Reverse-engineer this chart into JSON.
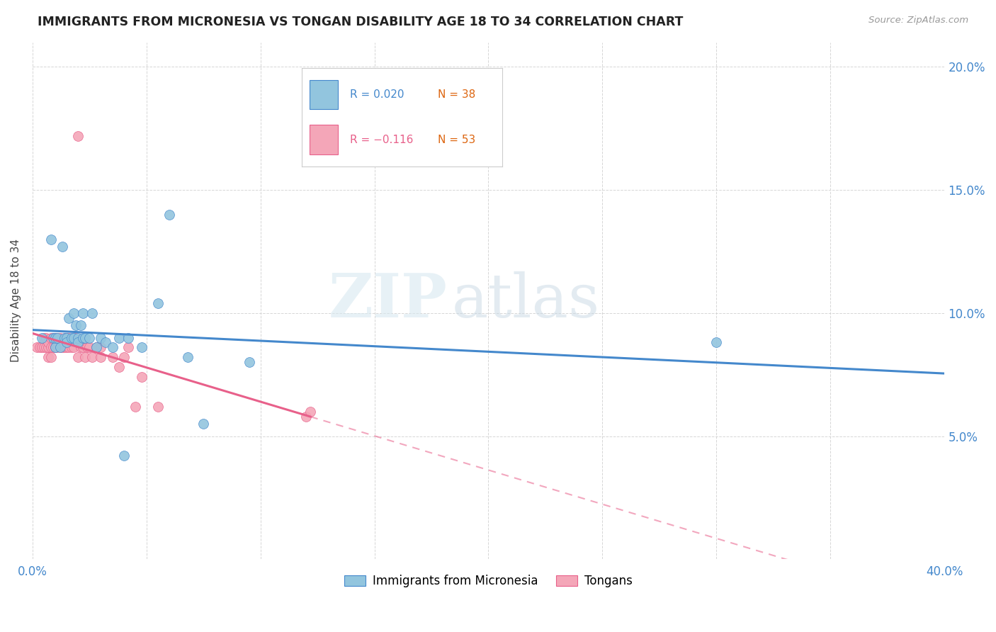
{
  "title": "IMMIGRANTS FROM MICRONESIA VS TONGAN DISABILITY AGE 18 TO 34 CORRELATION CHART",
  "source": "Source: ZipAtlas.com",
  "ylabel": "Disability Age 18 to 34",
  "xlim": [
    0.0,
    0.4
  ],
  "ylim": [
    0.0,
    0.21
  ],
  "x_ticks": [
    0.0,
    0.05,
    0.1,
    0.15,
    0.2,
    0.25,
    0.3,
    0.35,
    0.4
  ],
  "y_ticks": [
    0.0,
    0.05,
    0.1,
    0.15,
    0.2
  ],
  "blue_color": "#92c5de",
  "pink_color": "#f4a6b8",
  "blue_line_color": "#4488cc",
  "pink_line_color": "#e8608a",
  "legend_blue_r": "R = 0.020",
  "legend_blue_n": "N = 38",
  "legend_pink_r": "R = −0.116",
  "legend_pink_n": "N = 53",
  "watermark_zip": "ZIP",
  "watermark_atlas": "atlas",
  "blue_x": [
    0.004,
    0.008,
    0.009,
    0.01,
    0.01,
    0.011,
    0.012,
    0.013,
    0.014,
    0.015,
    0.015,
    0.016,
    0.017,
    0.018,
    0.018,
    0.019,
    0.02,
    0.02,
    0.021,
    0.022,
    0.022,
    0.023,
    0.025,
    0.026,
    0.028,
    0.03,
    0.032,
    0.035,
    0.038,
    0.04,
    0.042,
    0.048,
    0.055,
    0.06,
    0.068,
    0.075,
    0.095,
    0.3
  ],
  "blue_y": [
    0.09,
    0.13,
    0.09,
    0.086,
    0.09,
    0.09,
    0.086,
    0.127,
    0.09,
    0.09,
    0.088,
    0.098,
    0.09,
    0.09,
    0.1,
    0.095,
    0.09,
    0.088,
    0.095,
    0.09,
    0.1,
    0.09,
    0.09,
    0.1,
    0.086,
    0.09,
    0.088,
    0.086,
    0.09,
    0.042,
    0.09,
    0.086,
    0.104,
    0.14,
    0.082,
    0.055,
    0.08,
    0.088
  ],
  "pink_x": [
    0.002,
    0.003,
    0.004,
    0.005,
    0.005,
    0.006,
    0.006,
    0.007,
    0.007,
    0.007,
    0.008,
    0.008,
    0.008,
    0.009,
    0.009,
    0.01,
    0.01,
    0.01,
    0.011,
    0.011,
    0.012,
    0.012,
    0.013,
    0.014,
    0.014,
    0.015,
    0.015,
    0.016,
    0.016,
    0.017,
    0.018,
    0.018,
    0.019,
    0.02,
    0.021,
    0.022,
    0.023,
    0.024,
    0.025,
    0.026,
    0.028,
    0.03,
    0.03,
    0.035,
    0.038,
    0.04,
    0.042,
    0.045,
    0.048,
    0.055,
    0.12,
    0.122,
    0.02
  ],
  "pink_y": [
    0.086,
    0.086,
    0.086,
    0.086,
    0.09,
    0.086,
    0.09,
    0.086,
    0.088,
    0.082,
    0.09,
    0.086,
    0.082,
    0.086,
    0.09,
    0.086,
    0.09,
    0.086,
    0.09,
    0.086,
    0.09,
    0.086,
    0.086,
    0.086,
    0.09,
    0.09,
    0.086,
    0.09,
    0.086,
    0.086,
    0.09,
    0.086,
    0.09,
    0.082,
    0.086,
    0.086,
    0.082,
    0.086,
    0.086,
    0.082,
    0.086,
    0.082,
    0.086,
    0.082,
    0.078,
    0.082,
    0.086,
    0.062,
    0.074,
    0.062,
    0.058,
    0.06,
    0.172
  ]
}
